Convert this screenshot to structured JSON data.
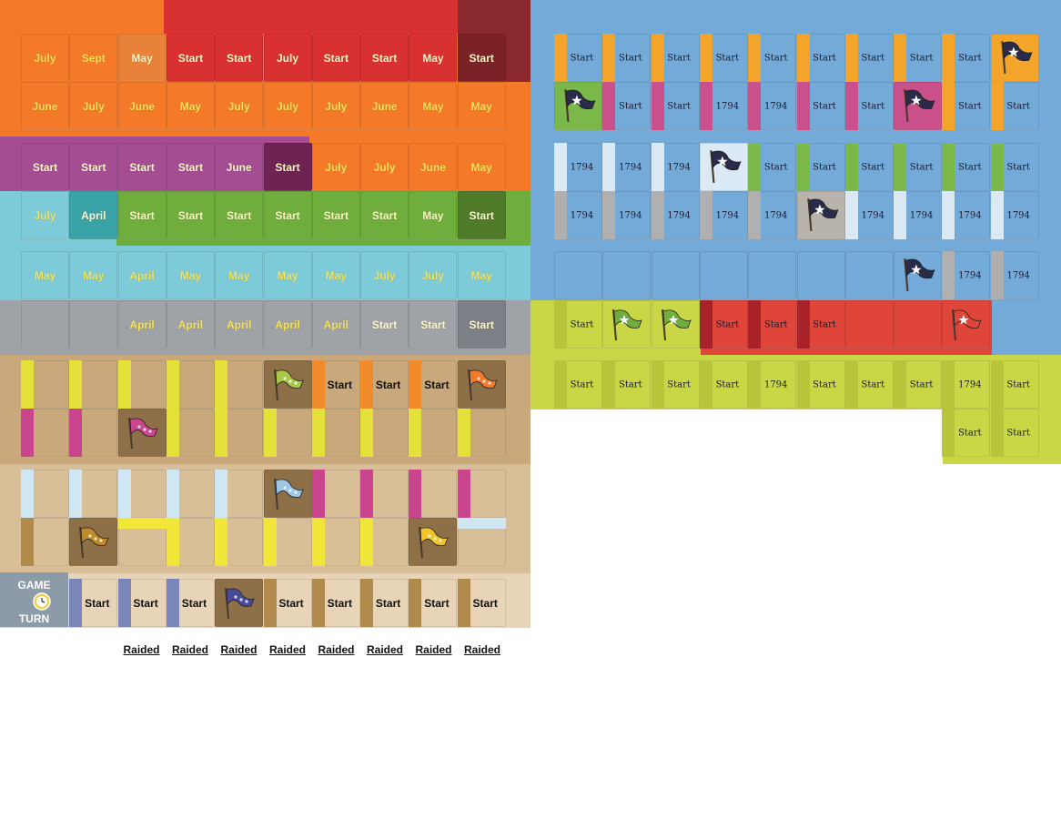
{
  "colors": {
    "red": "#d93131",
    "orange": "#f47a2a",
    "purple": "#a44d92",
    "cyan": "#7dcbd9",
    "grey": "#9fa2a6",
    "tan": "#c9a97b",
    "tan_light": "#d8bf98",
    "tan_pale": "#e8d5b7",
    "blue": "#74aad8",
    "lime": "#c9d646",
    "flag_navy": "#2a2a4a"
  },
  "left_rows": [
    [
      "July",
      "Sept",
      "May",
      "Start",
      "Start",
      "July",
      "Start",
      "Start",
      "May",
      "Start"
    ],
    [
      "June",
      "July",
      "June",
      "May",
      "July",
      "July",
      "July",
      "June",
      "May",
      "May"
    ],
    [
      "Start",
      "Start",
      "Start",
      "Start",
      "June",
      "Start",
      "July",
      "July",
      "June",
      "May"
    ],
    [
      "July",
      "April",
      "Start",
      "Start",
      "Start",
      "Start",
      "Start",
      "Start",
      "May",
      "Start"
    ],
    [
      "May",
      "May",
      "April",
      "May",
      "May",
      "May",
      "May",
      "July",
      "July",
      "May"
    ],
    [
      "",
      "",
      "April",
      "April",
      "April",
      "April",
      "April",
      "Start",
      "Start",
      "Start"
    ],
    [
      "",
      "",
      "",
      "",
      "",
      "",
      "Start",
      "Start",
      "Start",
      ""
    ],
    [
      "",
      "",
      "",
      "",
      "",
      "",
      "",
      "",
      "",
      ""
    ],
    [
      "",
      "",
      "",
      "",
      "",
      "",
      "",
      "",
      "",
      ""
    ],
    [
      "",
      "",
      "",
      "",
      "",
      "",
      "",
      "",
      "",
      ""
    ],
    [
      "",
      "Start",
      "Start",
      "Start",
      "",
      "Start",
      "Start",
      "Start",
      "Start",
      "Start"
    ]
  ],
  "right_rows": [
    [
      "Start",
      "Start",
      "Start",
      "Start",
      "Start",
      "Start",
      "Start",
      "Start",
      "Start",
      ""
    ],
    [
      "",
      "Start",
      "Start",
      "1794",
      "1794",
      "Start",
      "Start",
      "",
      "Start",
      "Start"
    ],
    [
      "1794",
      "1794",
      "1794",
      "",
      "Start",
      "Start",
      "Start",
      "Start",
      "Start",
      "Start"
    ],
    [
      "1794",
      "1794",
      "1794",
      "1794",
      "1794",
      "",
      "1794",
      "1794",
      "1794",
      "1794"
    ],
    [
      "",
      "",
      "",
      "",
      "",
      "",
      "",
      "",
      "1794",
      "1794"
    ],
    [
      "Start",
      "",
      "",
      "Start",
      "Start",
      "Start",
      "",
      "",
      "",
      ""
    ],
    [
      "Start",
      "Start",
      "Start",
      "Start",
      "1794",
      "Start",
      "Start",
      "Start",
      "1794",
      "Start"
    ],
    [
      "Start",
      "Start"
    ]
  ],
  "game_turn": {
    "line1": "GAME",
    "line2": "TURN",
    "icon": "clock-icon"
  },
  "raided": [
    "Raided",
    "Raided",
    "Raided",
    "Raided",
    "Raided",
    "Raided",
    "Raided",
    "Raided"
  ]
}
